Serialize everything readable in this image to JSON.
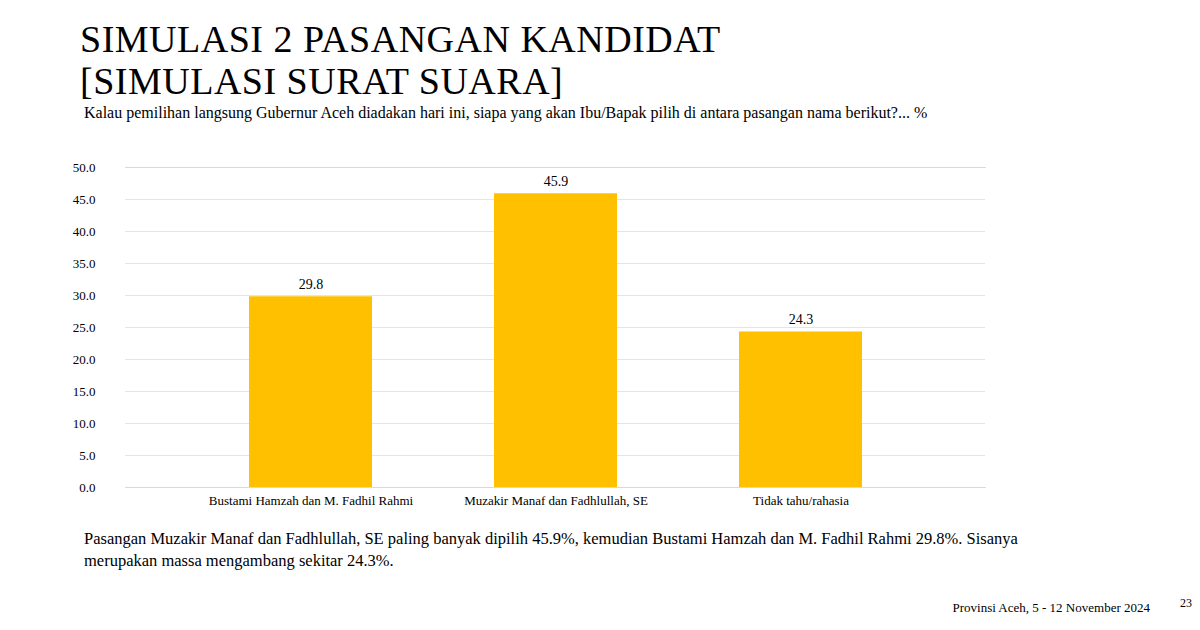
{
  "chart_data": {
    "type": "bar",
    "title": "SIMULASI 2 PASANGAN KANDIDAT",
    "subtitle": "[SIMULASI SURAT SUARA]",
    "question": "Kalau pemilihan langsung Gubernur Aceh diadakan hari ini, siapa yang akan Ibu/Bapak pilih di antara pasangan nama berikut?... %",
    "caption": "Pasangan Muzakir Manaf dan Fadhlullah, SE paling banyak dipilih 45.9%, kemudian Bustami Hamzah dan M. Fadhil Rahmi 29.8%. Sisanya merupakan massa mengambang sekitar 24.3%.",
    "source": "Provinsi Aceh, 5 - 12 November 2024",
    "page": "23",
    "categories": [
      "Bustami Hamzah dan M. Fadhil Rahmi",
      "Muzakir Manaf dan Fadhlullah, SE",
      "Tidak tahu/rahasia"
    ],
    "values": [
      29.8,
      45.9,
      24.3
    ],
    "color": "#FFC000",
    "ylim": [
      0,
      50
    ],
    "yticks": [
      {
        "value": 0,
        "label": "0.0"
      },
      {
        "value": 5,
        "label": "5.0"
      },
      {
        "value": 10,
        "label": "10.0"
      },
      {
        "value": 15,
        "label": "15.0"
      },
      {
        "value": 20,
        "label": "20.0"
      },
      {
        "value": 25,
        "label": "25.0"
      },
      {
        "value": 30,
        "label": "30.0"
      },
      {
        "value": 35,
        "label": "35.0"
      },
      {
        "value": 40,
        "label": "40.0"
      },
      {
        "value": 45,
        "label": "45.0"
      },
      {
        "value": 50,
        "label": "50.0"
      }
    ],
    "grid": true,
    "data_labels": true
  }
}
